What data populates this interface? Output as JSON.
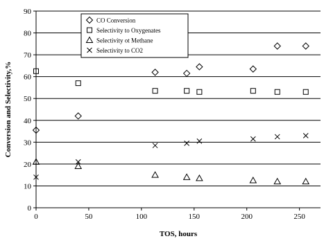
{
  "chart_data": {
    "type": "scatter",
    "xlabel": "TOS, hours",
    "ylabel": "Conversion and Selectivity,%",
    "xlim": [
      0,
      270
    ],
    "ylim": [
      0,
      90
    ],
    "x_ticks": [
      "0",
      "50",
      "100",
      "150",
      "200",
      "250"
    ],
    "y_ticks": [
      "0",
      "10",
      "20",
      "30",
      "40",
      "50",
      "60",
      "70",
      "80",
      "90"
    ],
    "grid": "horizontal",
    "legend_position": "top-left",
    "series": [
      {
        "name": "CO Conversion",
        "marker": "diamond",
        "points": [
          [
            0,
            35.5
          ],
          [
            40,
            42
          ],
          [
            113,
            62
          ],
          [
            143,
            61.5
          ],
          [
            155,
            64.5
          ],
          [
            206,
            63.5
          ],
          [
            229,
            74
          ],
          [
            256,
            74
          ]
        ]
      },
      {
        "name": "Selectivity to Oxygenates",
        "marker": "square",
        "points": [
          [
            0,
            62.5
          ],
          [
            40,
            57
          ],
          [
            113,
            53.5
          ],
          [
            143,
            53.5
          ],
          [
            155,
            53
          ],
          [
            206,
            53.5
          ],
          [
            229,
            53
          ],
          [
            256,
            53
          ]
        ]
      },
      {
        "name": "Selectivity ot Methane",
        "marker": "triangle",
        "points": [
          [
            0,
            21
          ],
          [
            40,
            19
          ],
          [
            113,
            15
          ],
          [
            143,
            14
          ],
          [
            155,
            13.5
          ],
          [
            206,
            12.5
          ],
          [
            229,
            12
          ],
          [
            256,
            12
          ]
        ]
      },
      {
        "name": "Selectivity to CO2",
        "marker": "x",
        "points": [
          [
            0,
            14
          ],
          [
            40,
            21
          ],
          [
            113,
            28.5
          ],
          [
            143,
            29.5
          ],
          [
            155,
            30.5
          ],
          [
            206,
            31.5
          ],
          [
            229,
            32.5
          ],
          [
            256,
            33
          ]
        ]
      }
    ]
  }
}
